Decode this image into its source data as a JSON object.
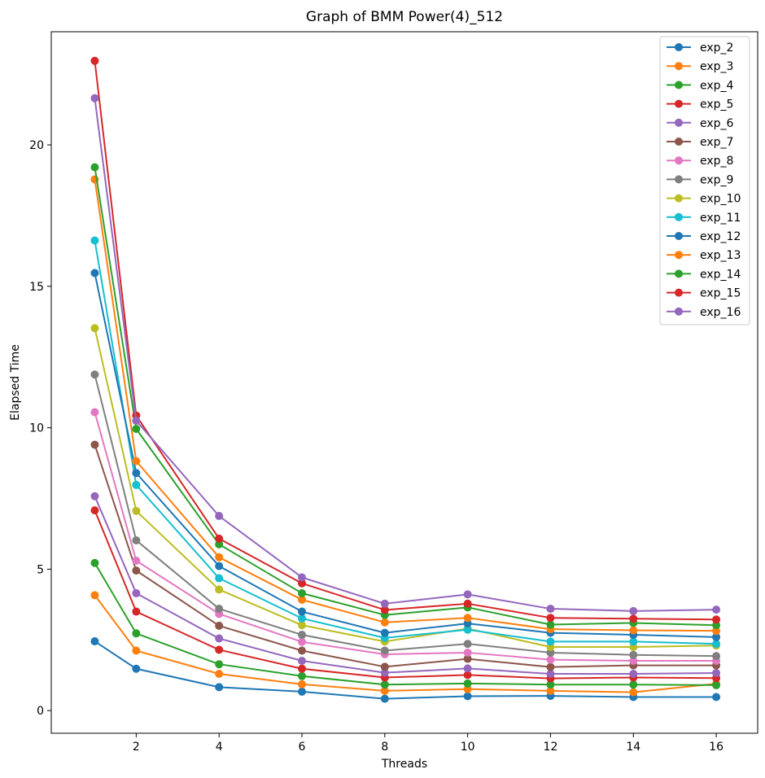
{
  "chart_data": {
    "type": "line",
    "title": "Graph of BMM Power(4)_512",
    "xlabel": "Threads",
    "ylabel": "Elapsed Time",
    "x": [
      1,
      2,
      4,
      6,
      8,
      10,
      12,
      14,
      16
    ],
    "xticks": [
      2,
      4,
      6,
      8,
      10,
      12,
      14,
      16
    ],
    "yticks": [
      0,
      5,
      10,
      15,
      20
    ],
    "xlim": [
      -0.05,
      17.0
    ],
    "ylim": [
      -0.8,
      24.0
    ],
    "grid": false,
    "legend_position": "top-right",
    "series": [
      {
        "name": "exp_2",
        "color": "#1f77b4",
        "values": [
          2.45,
          1.48,
          0.83,
          0.67,
          0.42,
          0.51,
          0.52,
          0.48,
          0.48
        ]
      },
      {
        "name": "exp_3",
        "color": "#ff7f0e",
        "values": [
          4.08,
          2.12,
          1.3,
          0.93,
          0.7,
          0.76,
          0.7,
          0.65,
          0.95
        ]
      },
      {
        "name": "exp_4",
        "color": "#2ca02c",
        "values": [
          5.22,
          2.73,
          1.64,
          1.22,
          0.92,
          0.96,
          0.92,
          0.92,
          0.9
        ]
      },
      {
        "name": "exp_5",
        "color": "#d62728",
        "values": [
          7.08,
          3.5,
          2.15,
          1.48,
          1.17,
          1.26,
          1.14,
          1.17,
          1.15
        ]
      },
      {
        "name": "exp_6",
        "color": "#9467bd",
        "values": [
          7.58,
          4.15,
          2.55,
          1.76,
          1.34,
          1.49,
          1.3,
          1.3,
          1.33
        ]
      },
      {
        "name": "exp_7",
        "color": "#8c564b",
        "values": [
          9.4,
          4.95,
          3.0,
          2.12,
          1.55,
          1.83,
          1.54,
          1.6,
          1.6
        ]
      },
      {
        "name": "exp_8",
        "color": "#e377c2",
        "values": [
          10.55,
          5.3,
          3.42,
          2.43,
          1.99,
          2.05,
          1.8,
          1.76,
          1.76
        ]
      },
      {
        "name": "exp_9",
        "color": "#7f7f7f",
        "values": [
          11.88,
          6.02,
          3.6,
          2.68,
          2.12,
          2.36,
          2.05,
          1.97,
          1.93
        ]
      },
      {
        "name": "exp_10",
        "color": "#bcbd22",
        "values": [
          13.52,
          7.06,
          4.28,
          3.02,
          2.44,
          2.9,
          2.25,
          2.25,
          2.3
        ]
      },
      {
        "name": "exp_11",
        "color": "#17becf",
        "values": [
          16.62,
          7.98,
          4.68,
          3.26,
          2.57,
          2.86,
          2.44,
          2.44,
          2.36
        ]
      },
      {
        "name": "exp_12",
        "color": "#1f77b4",
        "values": [
          15.47,
          8.4,
          5.11,
          3.5,
          2.75,
          3.08,
          2.75,
          2.68,
          2.6
        ]
      },
      {
        "name": "exp_13",
        "color": "#ff7f0e",
        "values": [
          18.78,
          8.82,
          5.42,
          3.92,
          3.12,
          3.28,
          2.88,
          2.84,
          2.82
        ]
      },
      {
        "name": "exp_14",
        "color": "#2ca02c",
        "values": [
          19.21,
          9.96,
          5.88,
          4.15,
          3.38,
          3.65,
          3.04,
          3.1,
          3.02
        ]
      },
      {
        "name": "exp_15",
        "color": "#d62728",
        "values": [
          22.97,
          10.43,
          6.08,
          4.5,
          3.56,
          3.78,
          3.28,
          3.25,
          3.22
        ]
      },
      {
        "name": "exp_16",
        "color": "#9467bd",
        "values": [
          21.65,
          10.25,
          6.88,
          4.71,
          3.78,
          4.11,
          3.6,
          3.52,
          3.57
        ]
      }
    ]
  }
}
